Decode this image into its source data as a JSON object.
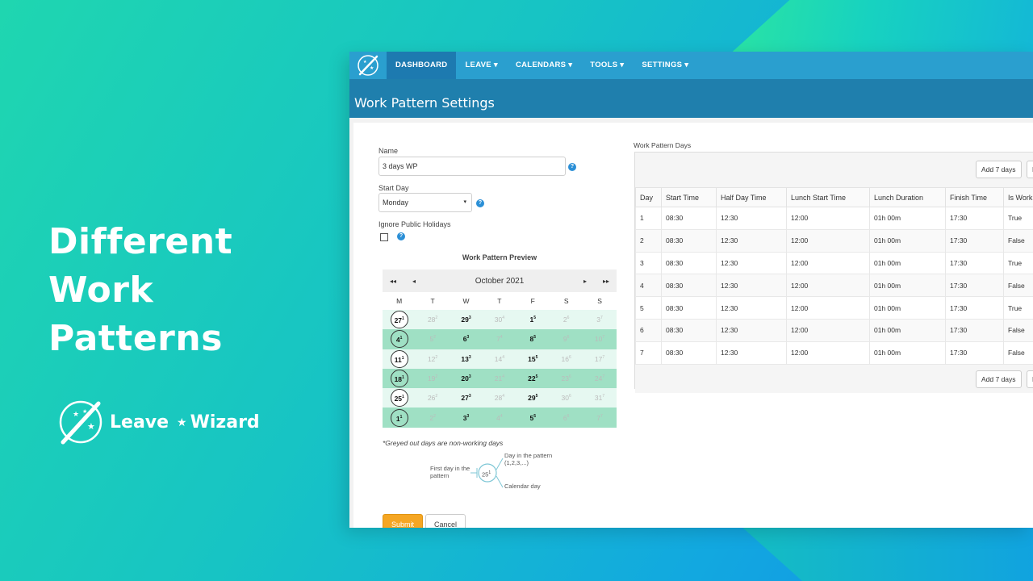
{
  "hero": {
    "title": "Different Work Patterns",
    "brand_left": "Leave",
    "brand_right": "Wizard"
  },
  "nav": {
    "items": [
      {
        "label": "DASHBOARD",
        "active": true
      },
      {
        "label": "LEAVE ▾"
      },
      {
        "label": "CALENDARS ▾"
      },
      {
        "label": "TOOLS ▾"
      },
      {
        "label": "SETTINGS ▾"
      }
    ]
  },
  "page": {
    "title": "Work Pattern Settings"
  },
  "form": {
    "name_label": "Name",
    "name_value": "3 days WP",
    "start_day_label": "Start Day",
    "start_day_value": "Monday",
    "ignore_holidays_label": "Ignore Public Holidays",
    "preview_title": "Work Pattern Preview"
  },
  "calendar": {
    "month": "October 2021",
    "nav_first": "◂◂",
    "nav_prev": "◂",
    "nav_next": "▸",
    "nav_last": "▸▸",
    "dow": [
      "M",
      "T",
      "W",
      "T",
      "F",
      "S",
      "S"
    ],
    "weeks": [
      {
        "style": "light",
        "days": [
          [
            "27",
            "1",
            "first"
          ],
          [
            "28",
            "2",
            "off"
          ],
          [
            "29",
            "3",
            "work"
          ],
          [
            "30",
            "4",
            "off"
          ],
          [
            "1",
            "5",
            "work"
          ],
          [
            "2",
            "6",
            "off"
          ],
          [
            "3",
            "7",
            "off"
          ]
        ]
      },
      {
        "style": "dark",
        "days": [
          [
            "4",
            "1",
            "first"
          ],
          [
            "5",
            "2",
            "off"
          ],
          [
            "6",
            "3",
            "work"
          ],
          [
            "7",
            "4",
            "off"
          ],
          [
            "8",
            "5",
            "work"
          ],
          [
            "9",
            "6",
            "off"
          ],
          [
            "10",
            "7",
            "off"
          ]
        ]
      },
      {
        "style": "light",
        "days": [
          [
            "11",
            "1",
            "first"
          ],
          [
            "12",
            "2",
            "off"
          ],
          [
            "13",
            "3",
            "work"
          ],
          [
            "14",
            "4",
            "off"
          ],
          [
            "15",
            "5",
            "work"
          ],
          [
            "16",
            "6",
            "off"
          ],
          [
            "17",
            "7",
            "off"
          ]
        ]
      },
      {
        "style": "dark",
        "days": [
          [
            "18",
            "1",
            "first"
          ],
          [
            "19",
            "2",
            "off"
          ],
          [
            "20",
            "3",
            "work"
          ],
          [
            "21",
            "4",
            "off"
          ],
          [
            "22",
            "5",
            "work"
          ],
          [
            "23",
            "6",
            "off"
          ],
          [
            "24",
            "7",
            "off"
          ]
        ]
      },
      {
        "style": "light",
        "days": [
          [
            "25",
            "1",
            "first"
          ],
          [
            "26",
            "2",
            "off"
          ],
          [
            "27",
            "3",
            "work"
          ],
          [
            "28",
            "4",
            "off"
          ],
          [
            "29",
            "5",
            "work"
          ],
          [
            "30",
            "6",
            "off"
          ],
          [
            "31",
            "7",
            "off"
          ]
        ]
      },
      {
        "style": "dark",
        "days": [
          [
            "1",
            "1",
            "first"
          ],
          [
            "2",
            "2",
            "off"
          ],
          [
            "3",
            "3",
            "work"
          ],
          [
            "4",
            "4",
            "off"
          ],
          [
            "5",
            "5",
            "work"
          ],
          [
            "6",
            "6",
            "off"
          ],
          [
            "7",
            "7",
            "off"
          ]
        ]
      }
    ],
    "legend": "*Greyed out days are non-working days",
    "diagram": {
      "first_day": "First day in the pattern",
      "sample": "25",
      "sample_sup": "1",
      "day_in_pattern": "Day in the pattern (1,2,3,...)",
      "calendar_day": "Calendar day"
    }
  },
  "buttons": {
    "submit": "Submit",
    "cancel": "Cancel"
  },
  "work_pattern_days": {
    "title": "Work Pattern Days",
    "add_label": "Add 7 days",
    "columns": [
      "Day",
      "Start Time",
      "Half Day Time",
      "Lunch Start Time",
      "Lunch Duration",
      "Finish Time",
      "Is Work"
    ],
    "rows": [
      [
        "1",
        "08:30",
        "12:30",
        "12:00",
        "01h 00m",
        "17:30",
        "True"
      ],
      [
        "2",
        "08:30",
        "12:30",
        "12:00",
        "01h 00m",
        "17:30",
        "False"
      ],
      [
        "3",
        "08:30",
        "12:30",
        "12:00",
        "01h 00m",
        "17:30",
        "True"
      ],
      [
        "4",
        "08:30",
        "12:30",
        "12:00",
        "01h 00m",
        "17:30",
        "False"
      ],
      [
        "5",
        "08:30",
        "12:30",
        "12:00",
        "01h 00m",
        "17:30",
        "True"
      ],
      [
        "6",
        "08:30",
        "12:30",
        "12:00",
        "01h 00m",
        "17:30",
        "False"
      ],
      [
        "7",
        "08:30",
        "12:30",
        "12:00",
        "01h 00m",
        "17:30",
        "False"
      ]
    ]
  }
}
